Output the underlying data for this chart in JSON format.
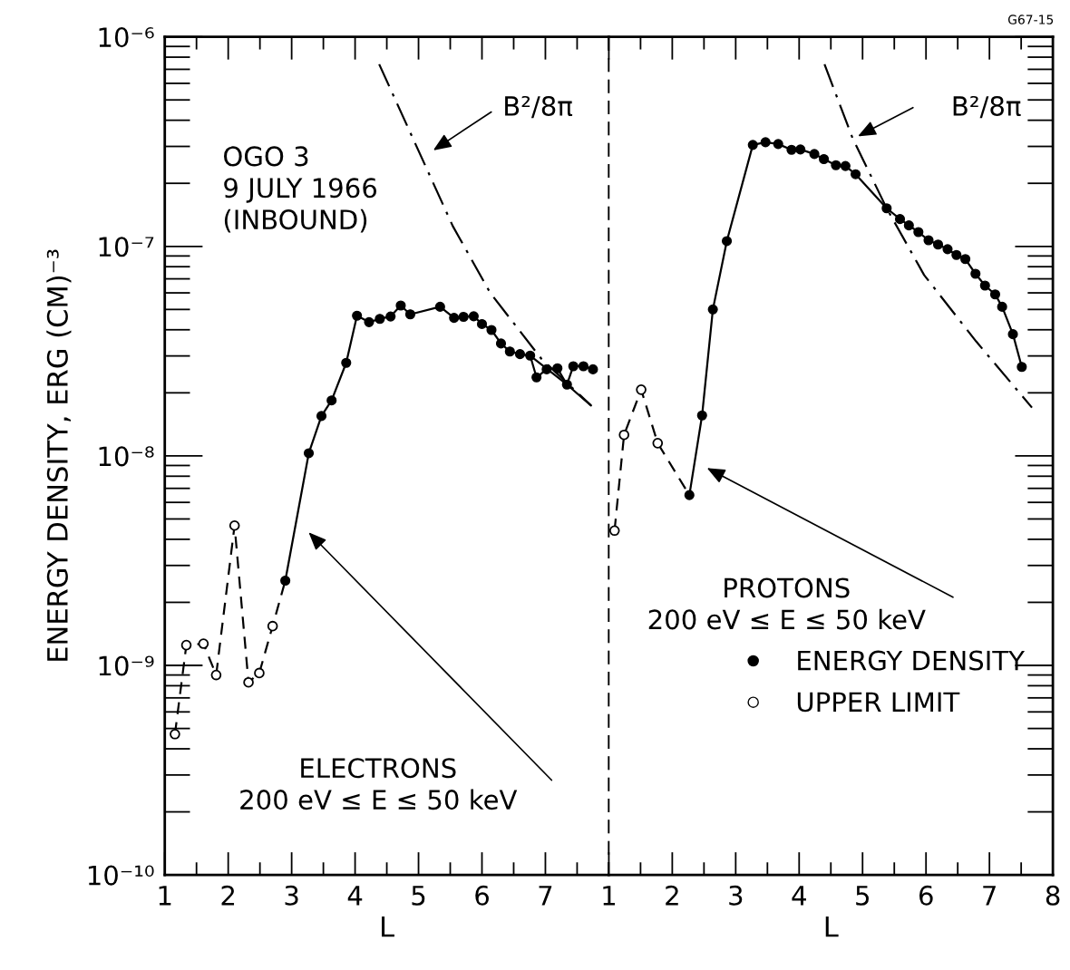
{
  "chart_data": [
    {
      "type": "line",
      "xlabel": "L",
      "ylabel": "ENERGY DENSITY, ERG (CM)⁻³",
      "log": "y",
      "grid": false,
      "xlim": [
        1,
        8
      ],
      "xticks": [
        1,
        2,
        3,
        4,
        5,
        6,
        7
      ],
      "ylim": [
        1e-10,
        1e-06
      ],
      "yticks": [
        {
          "value": 1e-10,
          "label": "10⁻¹⁰"
        },
        {
          "value": 1e-09,
          "label": "10⁻⁹"
        },
        {
          "value": 1e-08,
          "label": "10⁻⁸"
        },
        {
          "value": 1e-07,
          "label": "10⁻⁷"
        },
        {
          "value": 1e-06,
          "label": "10⁻⁶"
        }
      ],
      "series": [
        {
          "type": "line",
          "line_style": "dashed",
          "marker": "none",
          "color": "#000000",
          "x": [
            1.16,
            1.34,
            1.61,
            1.81,
            2.1,
            2.32,
            2.49,
            2.7,
            2.9
          ],
          "values": [
            4.7e-10,
            1.25e-09,
            1.27e-09,
            9e-10,
            4.65e-09,
            8.3e-10,
            9.2e-10,
            1.54e-09,
            2.54e-09
          ]
        },
        {
          "type": "line",
          "line_style": "solid",
          "marker": "circle",
          "color": "#000000",
          "x": [
            2.9,
            3.27,
            3.47,
            3.63,
            3.86,
            4.03,
            4.22,
            4.39,
            4.56,
            4.72,
            4.87,
            5.34,
            5.56,
            5.71,
            5.87,
            6.0,
            6.15,
            6.3,
            6.44,
            6.6,
            6.76,
            6.86,
            7.02,
            7.19,
            7.34,
            7.44,
            7.6,
            7.75
          ],
          "values": [
            2.54e-09,
            1.03e-08,
            1.55e-08,
            1.84e-08,
            2.78e-08,
            4.67e-08,
            4.35e-08,
            4.51e-08,
            4.63e-08,
            5.22e-08,
            4.74e-08,
            5.15e-08,
            4.56e-08,
            4.61e-08,
            4.64e-08,
            4.26e-08,
            3.99e-08,
            3.44e-08,
            3.15e-08,
            3.06e-08,
            3.01e-08,
            2.37e-08,
            2.59e-08,
            2.62e-08,
            2.19e-08,
            2.68e-08,
            2.68e-08,
            2.59e-08
          ]
        },
        {
          "type": "scatter",
          "marker": "circle",
          "color": "#ffffff",
          "x": [
            1.16,
            1.34,
            1.61,
            1.81,
            2.1,
            2.32,
            2.49,
            2.7
          ],
          "values": [
            4.7e-10,
            1.25e-09,
            1.27e-09,
            9e-10,
            4.65e-09,
            8.3e-10,
            9.2e-10,
            1.54e-09
          ]
        },
        {
          "type": "line",
          "line_style": "solid",
          "marker": "none",
          "color": "#000000",
          "x": [
            6.76,
            7.34,
            7.72
          ],
          "values": [
            3.01e-08,
            2.19e-08,
            1.74e-08
          ]
        },
        {
          "type": "line",
          "line_style": "dashdot",
          "marker": "none",
          "color": "#000000",
          "x": [
            4.38,
            5.54,
            6.13,
            6.94,
            7.72
          ],
          "values": [
            7.4e-07,
            1.25e-07,
            6e-08,
            2.9e-08,
            1.74e-08
          ]
        }
      ],
      "annotations": [
        "OGO 3\n9 JULY 1966\n(INBOUND)",
        "B²/8π",
        "ELECTRONS\n200 eV ≤ E ≤ 50 keV"
      ]
    },
    {
      "type": "line",
      "xlabel": "L",
      "log": "y",
      "grid": false,
      "legend": "lower right",
      "tick_labels": "x",
      "xlim": [
        1,
        8
      ],
      "xticks": [
        1,
        2,
        3,
        4,
        5,
        6,
        7,
        8
      ],
      "ylim": [
        1e-10,
        1e-06
      ],
      "yticks": [
        {
          "value": 1e-10,
          "label": null
        },
        {
          "value": 1e-09,
          "label": null
        },
        {
          "value": 1e-08,
          "label": null
        },
        {
          "value": 1e-07,
          "label": null
        },
        {
          "value": 1e-06,
          "label": null
        }
      ],
      "series": [
        {
          "type": "line",
          "line_style": "dashed",
          "marker": "none",
          "color": "#000000",
          "x": [
            1.09,
            1.24,
            1.51,
            1.77,
            2.27
          ],
          "values": [
            4.4e-09,
            1.26e-08,
            2.07e-08,
            1.15e-08,
            6.5e-09
          ]
        },
        {
          "name": "ENERGY DENSITY",
          "type": "line",
          "line_style": "solid",
          "marker": "circle",
          "color": "#000000",
          "x": [
            2.27,
            2.47,
            2.64,
            2.86,
            3.27,
            3.47,
            3.67,
            3.88,
            4.02,
            4.24,
            4.39,
            4.58,
            4.73,
            4.89,
            5.38,
            5.59,
            5.73,
            5.88,
            6.04,
            6.19,
            6.34,
            6.48,
            6.62,
            6.78,
            6.93,
            7.09,
            7.2,
            7.37,
            7.51
          ],
          "values": [
            6.5e-09,
            1.56e-08,
            5e-08,
            1.06e-07,
            3.05e-07,
            3.14e-07,
            3.08e-07,
            2.89e-07,
            2.9e-07,
            2.76e-07,
            2.61e-07,
            2.44e-07,
            2.42e-07,
            2.21e-07,
            1.52e-07,
            1.35e-07,
            1.26e-07,
            1.17e-07,
            1.07e-07,
            1.02e-07,
            9.7e-08,
            9.1e-08,
            8.7e-08,
            7.4e-08,
            6.5e-08,
            5.9e-08,
            5.15e-08,
            3.81e-08,
            2.66e-08
          ]
        },
        {
          "name": "UPPER LIMIT",
          "type": "scatter",
          "marker": "circle",
          "color": "#ffffff",
          "x": [
            1.09,
            1.24,
            1.51,
            1.77
          ],
          "values": [
            4.4e-09,
            1.26e-08,
            2.07e-08,
            1.15e-08
          ]
        },
        {
          "type": "line",
          "line_style": "dashdot",
          "marker": "none",
          "color": "#000000",
          "x": [
            4.4,
            4.84,
            5.38,
            5.97,
            6.79,
            7.67
          ],
          "values": [
            7.4e-07,
            3.3e-07,
            1.52e-07,
            7.3e-08,
            3.52e-08,
            1.7e-08
          ]
        }
      ],
      "annotations": [
        "B²/8π",
        "PROTONS\n200 eV ≤ E ≤ 50 keV",
        "G67-15"
      ]
    }
  ]
}
